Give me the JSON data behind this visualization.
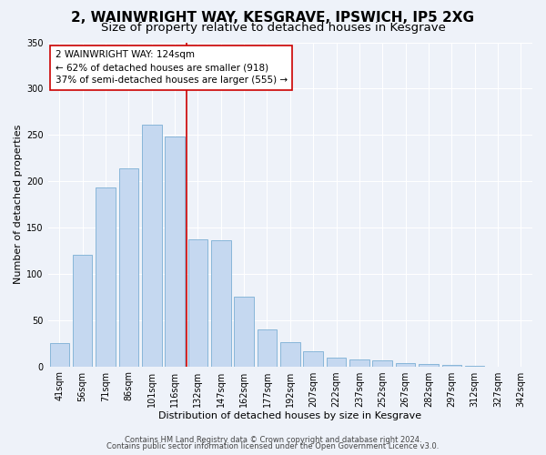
{
  "title": "2, WAINWRIGHT WAY, KESGRAVE, IPSWICH, IP5 2XG",
  "subtitle": "Size of property relative to detached houses in Kesgrave",
  "xlabel": "Distribution of detached houses by size in Kesgrave",
  "ylabel": "Number of detached properties",
  "categories": [
    "41sqm",
    "56sqm",
    "71sqm",
    "86sqm",
    "101sqm",
    "116sqm",
    "132sqm",
    "147sqm",
    "162sqm",
    "177sqm",
    "192sqm",
    "207sqm",
    "222sqm",
    "237sqm",
    "252sqm",
    "267sqm",
    "282sqm",
    "297sqm",
    "312sqm",
    "327sqm",
    "342sqm"
  ],
  "values": [
    25,
    120,
    193,
    214,
    261,
    248,
    137,
    136,
    75,
    40,
    26,
    16,
    9,
    7,
    6,
    4,
    3,
    2,
    1,
    0,
    0
  ],
  "bar_color": "#c5d8f0",
  "bar_edge_color": "#7bafd4",
  "vline_color": "#cc0000",
  "vline_x": 5.5,
  "annotation_title": "2 WAINWRIGHT WAY: 124sqm",
  "annotation_line1": "← 62% of detached houses are smaller (918)",
  "annotation_line2": "37% of semi-detached houses are larger (555) →",
  "annotation_box_color": "#ffffff",
  "annotation_box_edge_color": "#cc0000",
  "ylim": [
    0,
    350
  ],
  "yticks": [
    0,
    50,
    100,
    150,
    200,
    250,
    300,
    350
  ],
  "footer1": "Contains HM Land Registry data © Crown copyright and database right 2024.",
  "footer2": "Contains public sector information licensed under the Open Government Licence v3.0.",
  "bg_color": "#eef2f9",
  "plot_bg_color": "#eef2f9",
  "title_fontsize": 11,
  "subtitle_fontsize": 9.5,
  "axis_label_fontsize": 8,
  "tick_fontsize": 7,
  "annotation_fontsize": 7.5,
  "footer_fontsize": 6
}
